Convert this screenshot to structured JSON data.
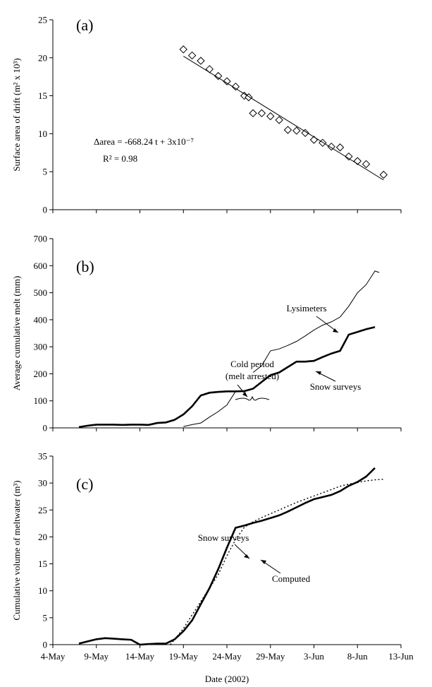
{
  "chart_data": [
    {
      "panel": "(a)",
      "type": "scatter",
      "ylabel": "Surface area of drift (m² x 10³)",
      "ylim": [
        0,
        25
      ],
      "yticks": [
        0,
        5,
        10,
        15,
        20,
        25
      ],
      "annotations": [
        "Δarea = -668.24 t + 3x10⁻⁷",
        "R² = 0.98"
      ],
      "series": [
        {
          "marker": "diamond",
          "x": [
            "2002-05-19",
            "2002-05-20",
            "2002-05-21",
            "2002-05-22",
            "2002-05-23",
            "2002-05-24",
            "2002-05-25",
            "2002-05-26",
            "2002-05-26.5",
            "2002-05-27",
            "2002-05-28",
            "2002-05-29",
            "2002-05-30",
            "2002-05-31",
            "2002-06-01",
            "2002-06-02",
            "2002-06-03",
            "2002-06-04",
            "2002-06-05",
            "2002-06-06",
            "2002-06-07",
            "2002-06-08",
            "2002-06-09",
            "2002-06-11"
          ],
          "y": [
            21.1,
            20.3,
            19.6,
            18.5,
            17.6,
            16.9,
            16.2,
            15.0,
            14.8,
            12.7,
            12.7,
            12.3,
            11.8,
            10.5,
            10.4,
            10.1,
            9.2,
            8.8,
            8.3,
            8.2,
            7.0,
            6.4,
            6.0,
            4.6
          ]
        },
        {
          "type": "line",
          "style": "solid",
          "x": [
            "2002-05-19",
            "2002-06-11"
          ],
          "y": [
            20.2,
            3.9
          ]
        }
      ]
    },
    {
      "panel": "(b)",
      "type": "line",
      "ylabel": "Average cumulative melt (mm)",
      "ylim": [
        0,
        700
      ],
      "yticks": [
        0,
        100,
        200,
        300,
        400,
        500,
        600,
        700
      ],
      "annotations": [
        "Cold period",
        "(melt arrested)",
        "Lysimeters",
        "Snow surveys"
      ],
      "series": [
        {
          "name": "Snow surveys",
          "style": "bold",
          "x": [
            "05-07",
            "05-08",
            "05-09",
            "05-10",
            "05-11",
            "05-12",
            "05-13",
            "05-14",
            "05-15",
            "05-16",
            "05-17",
            "05-18",
            "05-19",
            "05-20",
            "05-21",
            "05-22",
            "05-23",
            "05-24",
            "05-25",
            "05-26",
            "05-27",
            "05-28",
            "05-29",
            "05-30",
            "05-31",
            "06-01",
            "06-02",
            "06-03",
            "06-04",
            "06-05",
            "06-06",
            "06-07",
            "06-08",
            "06-09",
            "06-10"
          ],
          "y": [
            3,
            8,
            12,
            12,
            12,
            11,
            12,
            12,
            11,
            18,
            20,
            30,
            50,
            80,
            120,
            130,
            133,
            135,
            135,
            136,
            145,
            170,
            195,
            205,
            225,
            245,
            245,
            248,
            262,
            275,
            285,
            345,
            355,
            365,
            373
          ]
        },
        {
          "name": "Lysimeters",
          "style": "thin",
          "x": [
            "05-19",
            "05-20",
            "05-21",
            "05-22",
            "05-23",
            "05-24",
            "05-25",
            "05-26",
            "05-27",
            "05-28",
            "05-29",
            "05-30",
            "05-31",
            "06-01",
            "06-02",
            "06-03",
            "06-04",
            "06-05",
            "06-06",
            "06-07",
            "06-08",
            "06-09",
            "06-10",
            "06-10.5"
          ],
          "y": [
            5,
            12,
            18,
            40,
            60,
            85,
            135,
            null,
            205,
            230,
            285,
            292,
            305,
            320,
            340,
            362,
            380,
            392,
            410,
            450,
            500,
            530,
            580,
            575
          ]
        }
      ]
    },
    {
      "panel": "(c)",
      "type": "line",
      "ylabel": "Cumulative volume of meltwater (m³)",
      "xlabel": "Date (2002)",
      "ylim": [
        0,
        35
      ],
      "yticks": [
        0,
        5,
        10,
        15,
        20,
        25,
        30,
        35
      ],
      "annotations": [
        "Snow surveys",
        "Computed"
      ],
      "xticks": [
        "4-May",
        "9-May",
        "14-May",
        "19-May",
        "24-May",
        "29-May",
        "3-Jun",
        "8-Jun",
        "13-Jun"
      ],
      "series": [
        {
          "name": "Snow surveys",
          "style": "bold",
          "x": [
            "05-07",
            "05-08",
            "05-09",
            "05-10",
            "05-11",
            "05-12",
            "05-13",
            "05-14",
            "05-15",
            "05-16",
            "05-17",
            "05-18",
            "05-19",
            "05-20",
            "05-21",
            "05-22",
            "05-23",
            "05-24",
            "05-25",
            "05-26",
            "05-27",
            "05-28",
            "05-29",
            "05-30",
            "05-31",
            "06-01",
            "06-02",
            "06-03",
            "06-04",
            "06-05",
            "06-06",
            "06-07",
            "06-08",
            "06-09",
            "06-10"
          ],
          "y": [
            0.2,
            0.6,
            1.0,
            1.2,
            1.1,
            1.0,
            0.9,
            0.0,
            0.1,
            0.2,
            0.2,
            1.0,
            2.5,
            4.5,
            7.5,
            10.5,
            14.0,
            18.0,
            21.7,
            22.1,
            22.6,
            23.0,
            23.5,
            24.0,
            24.7,
            25.5,
            26.3,
            27.0,
            27.4,
            27.8,
            28.5,
            29.5,
            30.2,
            31.2,
            32.8
          ]
        },
        {
          "name": "Computed",
          "style": "dotted",
          "x": [
            "05-17.5",
            "05-18",
            "05-19",
            "05-20",
            "05-21",
            "05-22",
            "05-23",
            "05-24",
            "05-25",
            "05-26",
            "05-27",
            "05-28",
            "05-29",
            "05-30",
            "05-31",
            "06-01",
            "06-02",
            "06-03",
            "06-04",
            "06-05",
            "06-06",
            "06-07",
            "06-08",
            "06-09",
            "06-10",
            "06-11"
          ],
          "y": [
            0.0,
            1.0,
            3.0,
            5.5,
            8.0,
            10.5,
            13.0,
            16.5,
            19.5,
            21.8,
            22.8,
            23.6,
            24.3,
            25.0,
            25.7,
            26.4,
            27.0,
            27.6,
            28.2,
            28.8,
            29.4,
            29.8,
            30.1,
            30.4,
            30.6,
            30.7
          ]
        }
      ]
    }
  ]
}
